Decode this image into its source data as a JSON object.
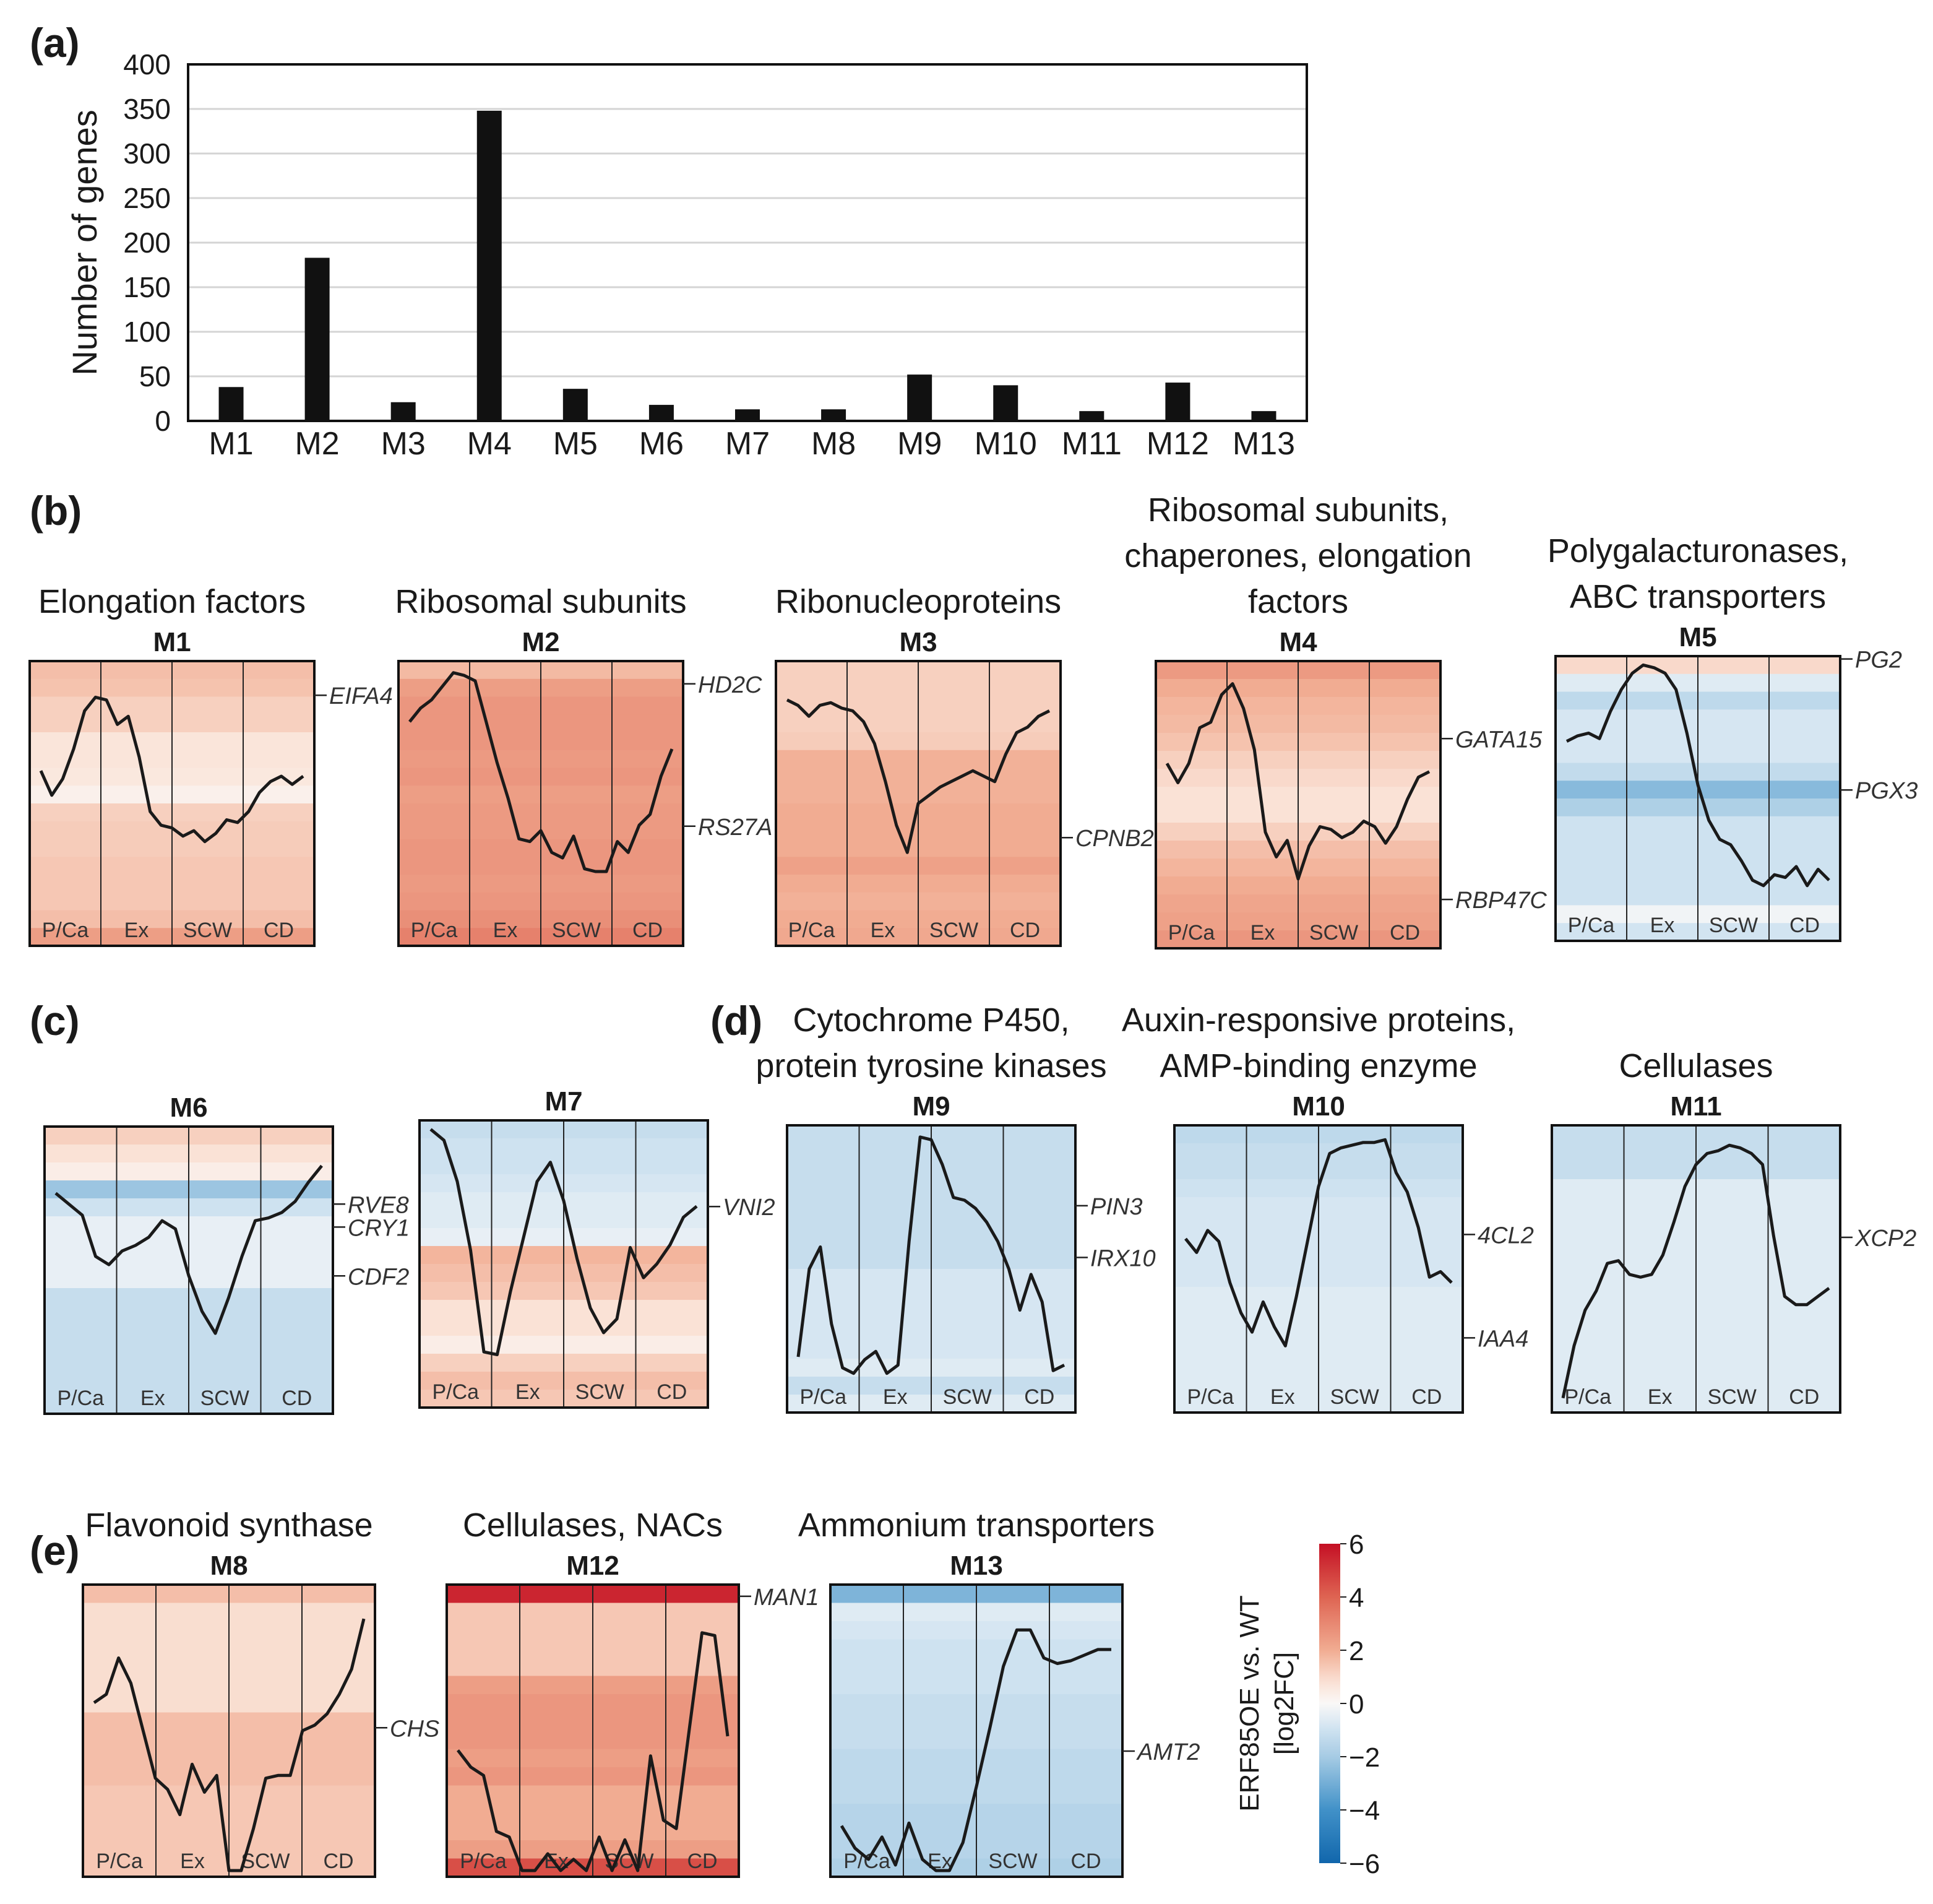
{
  "figure": {
    "panel_labels": [
      "(a)",
      "(b)",
      "(c)",
      "(d)",
      "(e)"
    ],
    "stages": [
      "P/Ca",
      "Ex",
      "SCW",
      "CD"
    ]
  },
  "chart_data": [
    {
      "type": "bar",
      "panel": "(a)",
      "categories": [
        "M1",
        "M2",
        "M3",
        "M4",
        "M5",
        "M6",
        "M7",
        "M8",
        "M9",
        "M10",
        "M11",
        "M12",
        "M13"
      ],
      "values": [
        38,
        183,
        21,
        348,
        36,
        18,
        13,
        13,
        52,
        40,
        11,
        43,
        11
      ],
      "ylabel": "Number of genes",
      "ylim": [
        0,
        400
      ],
      "yticks": [
        0,
        50,
        100,
        150,
        200,
        250,
        300,
        350,
        400
      ],
      "grid": true
    },
    {
      "type": "heatmap",
      "panel": "(b)",
      "module": "M1",
      "title": "Elongation factors",
      "stages": [
        "P/Ca",
        "Ex",
        "SCW",
        "CD"
      ],
      "stripes": [
        1.6,
        1.5,
        1.2,
        1.2,
        0.7,
        0.7,
        0.6,
        0.3,
        1.2,
        1.3,
        1.3,
        1.4,
        1.4,
        1.4,
        1.6,
        2.4
      ],
      "profile": [
        0.38,
        0.47,
        0.41,
        0.3,
        0.16,
        0.11,
        0.12,
        0.21,
        0.18,
        0.33,
        0.53,
        0.58,
        0.59,
        0.62,
        0.6,
        0.64,
        0.61,
        0.56,
        0.57,
        0.53,
        0.46,
        0.42,
        0.4,
        0.43,
        0.4
      ],
      "genes": [
        {
          "name": "EIFA4",
          "pos": 0.12
        }
      ]
    },
    {
      "type": "heatmap",
      "panel": "(b)",
      "module": "M2",
      "title": "Ribosomal subunits",
      "stages": [
        "P/Ca",
        "Ex",
        "SCW",
        "CD"
      ],
      "stripes": [
        1.7,
        2.4,
        2.6,
        2.6,
        2.6,
        2.5,
        2.6,
        2.4,
        2.5,
        2.5,
        2.6,
        2.6,
        2.5,
        2.6,
        2.8,
        3.2
      ],
      "profile": [
        0.2,
        0.15,
        0.12,
        0.07,
        0.02,
        0.03,
        0.05,
        0.2,
        0.35,
        0.48,
        0.63,
        0.64,
        0.6,
        0.68,
        0.7,
        0.62,
        0.74,
        0.75,
        0.75,
        0.64,
        0.68,
        0.58,
        0.54,
        0.4,
        0.3
      ],
      "genes": [
        {
          "name": "HD2C",
          "pos": 0.08
        },
        {
          "name": "RS27A",
          "pos": 0.58
        }
      ]
    },
    {
      "type": "heatmap",
      "panel": "(b)",
      "module": "M3",
      "title": "Ribonucleoproteins",
      "stages": [
        "P/Ca",
        "Ex",
        "SCW",
        "CD"
      ],
      "stripes": [
        1.2,
        1.2,
        1.2,
        1.2,
        1.3,
        1.9,
        1.9,
        1.9,
        2.0,
        2.0,
        2.0,
        2.3,
        2.0,
        1.9,
        2.0,
        2.1
      ],
      "profile": [
        0.12,
        0.14,
        0.18,
        0.14,
        0.13,
        0.15,
        0.16,
        0.2,
        0.28,
        0.42,
        0.58,
        0.68,
        0.5,
        0.47,
        0.44,
        0.42,
        0.4,
        0.38,
        0.4,
        0.42,
        0.32,
        0.24,
        0.22,
        0.18,
        0.16
      ],
      "genes": [
        {
          "name": "CPNB2",
          "pos": 0.62
        }
      ]
    },
    {
      "type": "heatmap",
      "panel": "(b)",
      "module": "M4",
      "title": "Ribosomal subunits,\nchaperones, elongation\nfactors",
      "stages": [
        "P/Ca",
        "Ex",
        "SCW",
        "CD"
      ],
      "stripes": [
        2.5,
        2.0,
        1.8,
        1.7,
        1.5,
        1.2,
        1.0,
        0.8,
        0.8,
        1.2,
        1.6,
        1.8,
        2.0,
        2.2,
        2.3,
        2.6
      ],
      "profile": [
        0.35,
        0.42,
        0.35,
        0.22,
        0.2,
        0.1,
        0.06,
        0.15,
        0.3,
        0.6,
        0.69,
        0.63,
        0.77,
        0.65,
        0.58,
        0.59,
        0.62,
        0.6,
        0.56,
        0.58,
        0.64,
        0.58,
        0.48,
        0.4,
        0.38
      ],
      "genes": [
        {
          "name": "GATA15",
          "pos": 0.27
        },
        {
          "name": "RBP47C",
          "pos": 0.83
        }
      ]
    },
    {
      "type": "heatmap",
      "panel": "(b)",
      "module": "M5",
      "title": "Polygalacturonases,\nABC transporters",
      "stages": [
        "P/Ca",
        "Ex",
        "SCW",
        "CD"
      ],
      "stripes": [
        1.0,
        -0.6,
        -1.4,
        -0.8,
        -0.8,
        -0.8,
        -1.3,
        -2.6,
        -1.8,
        -1.0,
        -1.0,
        -1.0,
        -1.0,
        -1.0,
        -0.2,
        -0.9
      ],
      "profile": [
        0.29,
        0.27,
        0.26,
        0.28,
        0.18,
        0.1,
        0.04,
        0.01,
        0.02,
        0.04,
        0.1,
        0.26,
        0.45,
        0.58,
        0.65,
        0.67,
        0.73,
        0.8,
        0.82,
        0.78,
        0.79,
        0.75,
        0.82,
        0.76,
        0.8
      ],
      "genes": [
        {
          "name": "PG2",
          "pos": 0.01
        },
        {
          "name": "PGX3",
          "pos": 0.47
        }
      ]
    },
    {
      "type": "heatmap",
      "panel": "(c)",
      "module": "M6",
      "title": "",
      "stages": [
        "P/Ca",
        "Ex",
        "SCW",
        "CD"
      ],
      "stripes": [
        1.2,
        0.8,
        0.4,
        -2.2,
        -1.0,
        -0.4,
        -0.4,
        -0.4,
        -0.4,
        -1.2,
        -1.2,
        -1.2,
        -1.2,
        -1.2,
        -1.2,
        -1.2
      ],
      "profile": [
        0.22,
        0.26,
        0.3,
        0.45,
        0.48,
        0.43,
        0.41,
        0.38,
        0.32,
        0.35,
        0.52,
        0.65,
        0.73,
        0.6,
        0.45,
        0.32,
        0.31,
        0.29,
        0.25,
        0.18,
        0.12
      ],
      "genes": [
        {
          "name": "RVE8",
          "pos": 0.27
        },
        {
          "name": "CRY1",
          "pos": 0.35
        },
        {
          "name": "CDF2",
          "pos": 0.52
        }
      ]
    },
    {
      "type": "heatmap",
      "panel": "(c)",
      "module": "M7",
      "title": "",
      "stages": [
        "P/Ca",
        "Ex",
        "SCW",
        "CD"
      ],
      "stripes": [
        -1.2,
        -1.0,
        -1.0,
        -0.8,
        -0.6,
        -0.6,
        -0.4,
        1.8,
        1.6,
        1.4,
        0.8,
        0.8,
        0.4,
        1.2,
        1.6,
        1.4
      ],
      "profile": [
        0.01,
        0.05,
        0.2,
        0.45,
        0.82,
        0.83,
        0.6,
        0.4,
        0.2,
        0.13,
        0.27,
        0.48,
        0.66,
        0.75,
        0.7,
        0.44,
        0.55,
        0.5,
        0.43,
        0.33,
        0.29
      ],
      "genes": [
        {
          "name": "VNI2",
          "pos": 0.3
        }
      ]
    },
    {
      "type": "heatmap",
      "panel": "(d)",
      "module": "M9",
      "title": "Cytochrome P450,\nprotein tyrosine kinases",
      "stages": [
        "P/Ca",
        "Ex",
        "SCW",
        "CD"
      ],
      "stripes": [
        -1.2,
        -1.2,
        -1.2,
        -1.2,
        -1.2,
        -1.2,
        -1.2,
        -1.2,
        -0.8,
        -0.8,
        -0.8,
        -0.8,
        -0.8,
        -0.6,
        -1.2,
        -0.6
      ],
      "profile": [
        0.82,
        0.5,
        0.42,
        0.7,
        0.86,
        0.88,
        0.83,
        0.8,
        0.88,
        0.85,
        0.4,
        0.02,
        0.03,
        0.12,
        0.24,
        0.25,
        0.28,
        0.33,
        0.4,
        0.5,
        0.65,
        0.52,
        0.62,
        0.87,
        0.85
      ],
      "genes": [
        {
          "name": "PIN3",
          "pos": 0.28
        },
        {
          "name": "IRX10",
          "pos": 0.46
        }
      ]
    },
    {
      "type": "heatmap",
      "panel": "(d)",
      "module": "M10",
      "title": "Auxin-responsive proteins,\nAMP-binding enzyme",
      "stages": [
        "P/Ca",
        "Ex",
        "SCW",
        "CD"
      ],
      "stripes": [
        -1.4,
        -1.2,
        -1.2,
        -1.0,
        -0.8,
        -0.8,
        -0.8,
        -0.8,
        -0.8,
        -0.6,
        -0.6,
        -0.6,
        -0.6,
        -0.6,
        -0.6,
        -0.6
      ],
      "profile": [
        0.39,
        0.44,
        0.36,
        0.4,
        0.55,
        0.66,
        0.73,
        0.62,
        0.71,
        0.78,
        0.6,
        0.4,
        0.2,
        0.08,
        0.06,
        0.05,
        0.04,
        0.04,
        0.03,
        0.15,
        0.22,
        0.35,
        0.53,
        0.51,
        0.55
      ],
      "genes": [
        {
          "name": "4CL2",
          "pos": 0.38
        },
        {
          "name": "IAA4",
          "pos": 0.74
        }
      ]
    },
    {
      "type": "heatmap",
      "panel": "(d)",
      "module": "M11",
      "title": "Cellulases",
      "stages": [
        "P/Ca",
        "Ex",
        "SCW",
        "CD"
      ],
      "stripes": [
        -1.2,
        -1.2,
        -1.2,
        -0.6,
        -0.6,
        -0.6,
        -0.6,
        -0.6,
        -0.6,
        -0.6,
        -0.6,
        -0.6,
        -0.6,
        -0.6,
        -0.6,
        -0.6
      ],
      "profile": [
        0.97,
        0.78,
        0.65,
        0.58,
        0.48,
        0.47,
        0.52,
        0.53,
        0.52,
        0.45,
        0.33,
        0.2,
        0.12,
        0.08,
        0.07,
        0.05,
        0.06,
        0.08,
        0.12,
        0.38,
        0.6,
        0.63,
        0.63,
        0.6,
        0.57
      ],
      "genes": [
        {
          "name": "XCP2",
          "pos": 0.39
        }
      ]
    },
    {
      "type": "heatmap",
      "panel": "(e)",
      "module": "M8",
      "title": "Flavonoid synthase",
      "stages": [
        "P/Ca",
        "Ex",
        "SCW",
        "CD"
      ],
      "stripes": [
        1.6,
        0.9,
        0.9,
        0.9,
        0.9,
        0.9,
        0.9,
        1.6,
        1.6,
        1.6,
        1.6,
        1.4,
        1.4,
        1.4,
        1.4,
        1.4
      ],
      "profile": [
        0.4,
        0.37,
        0.24,
        0.33,
        0.5,
        0.67,
        0.71,
        0.8,
        0.62,
        0.72,
        0.66,
        1.0,
        1.0,
        0.85,
        0.67,
        0.66,
        0.66,
        0.5,
        0.48,
        0.44,
        0.37,
        0.28,
        0.1
      ],
      "genes": [
        {
          "name": "CHS",
          "pos": 0.49
        }
      ]
    },
    {
      "type": "heatmap",
      "panel": "(e)",
      "module": "M12",
      "title": "Cellulases, NACs",
      "stages": [
        "P/Ca",
        "Ex",
        "SCW",
        "CD"
      ],
      "stripes": [
        5.5,
        1.4,
        1.4,
        1.4,
        1.4,
        2.4,
        2.6,
        2.6,
        2.6,
        2.4,
        2.6,
        2.0,
        2.0,
        2.0,
        2.4,
        4.5
      ],
      "profile": [
        0.57,
        0.63,
        0.66,
        0.86,
        0.88,
        1.0,
        1.0,
        0.94,
        1.0,
        0.96,
        1.0,
        0.88,
        1.0,
        0.89,
        1.0,
        0.59,
        0.82,
        0.85,
        0.5,
        0.15,
        0.16,
        0.52
      ],
      "genes": [
        {
          "name": "MAN1",
          "pos": 0.04
        }
      ]
    },
    {
      "type": "heatmap",
      "panel": "(e)",
      "module": "M13",
      "title": "Ammonium transporters",
      "stages": [
        "P/Ca",
        "Ex",
        "SCW",
        "CD"
      ],
      "stripes": [
        -2.8,
        -0.6,
        -0.8,
        -1.0,
        -1.0,
        -1.0,
        -1.2,
        -1.2,
        -1.2,
        -1.4,
        -1.4,
        -1.4,
        -1.6,
        -1.6,
        -1.6,
        -1.8
      ],
      "profile": [
        0.84,
        0.92,
        0.96,
        0.88,
        0.98,
        0.83,
        0.96,
        1.0,
        1.0,
        0.9,
        0.7,
        0.49,
        0.27,
        0.14,
        0.14,
        0.24,
        0.26,
        0.25,
        0.23,
        0.21,
        0.21
      ],
      "genes": [
        {
          "name": "AMT2",
          "pos": 0.57
        }
      ]
    },
    {
      "type": "colorbar",
      "label": "ERF85OE vs. WT\n[log2FC]",
      "ticks": [
        "6",
        "4",
        "2",
        "0",
        "−2",
        "−4",
        "−6"
      ],
      "range": [
        -6,
        6
      ]
    }
  ]
}
